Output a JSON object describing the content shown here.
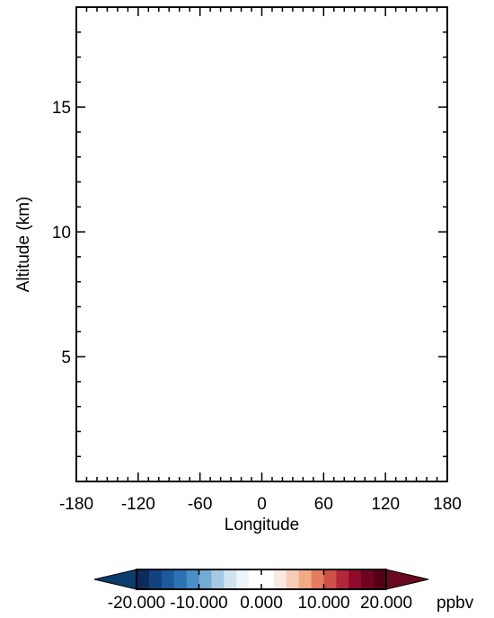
{
  "chart_data": {
    "type": "heatmap",
    "title": "",
    "xlabel": "Longitude",
    "ylabel": "Altitude (km)",
    "xlim": [
      -180,
      180
    ],
    "ylim": [
      0,
      19
    ],
    "x_ticks": [
      -180,
      -120,
      -60,
      0,
      60,
      120,
      180
    ],
    "x_tick_labels": [
      "-180",
      "-120",
      "-60",
      "0",
      "60",
      "120",
      "180"
    ],
    "y_ticks": [
      5,
      10,
      15
    ],
    "y_tick_labels": [
      "5",
      "10",
      "15"
    ],
    "x_minor_step": 10,
    "y_minor_step": 1,
    "series": [],
    "colorbar": {
      "unit": "ppbv",
      "range": [
        -20,
        20
      ],
      "tick_values": [
        -20,
        -10,
        0,
        10,
        20
      ],
      "tick_labels": [
        "-20.000",
        "-10.000",
        "0.000",
        "10.000",
        "20.000"
      ],
      "extend": "both",
      "colors": [
        "#0b2b5a",
        "#12427d",
        "#1c5a9c",
        "#2d72b4",
        "#4a8ec6",
        "#73abd5",
        "#a3c9e4",
        "#cfe3f0",
        "#eef5fa",
        "#ffffff",
        "#ffffff",
        "#fbe9e0",
        "#f8cdb7",
        "#f2a986",
        "#e47c60",
        "#d0504a",
        "#b3273a",
        "#900a2c",
        "#6e0421",
        "#560016"
      ],
      "under_color": "#0a3d6e",
      "over_color": "#6a0a1e"
    }
  }
}
